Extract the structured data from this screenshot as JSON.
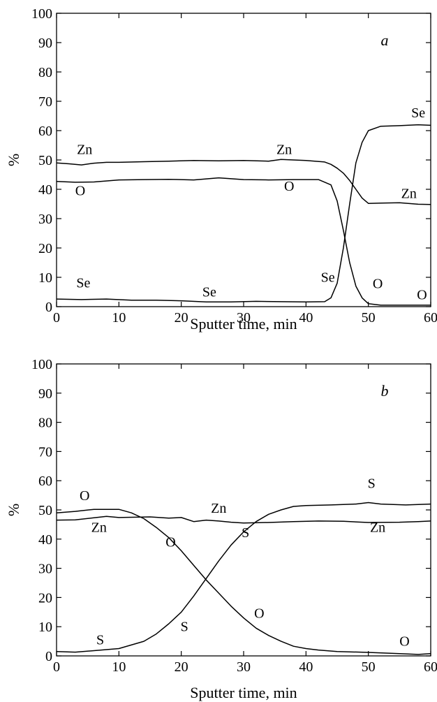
{
  "chart_data": [
    {
      "type": "line",
      "panel_label": "a",
      "xlabel": "Sputter time, min",
      "ylabel": "%",
      "xlim": [
        0,
        60
      ],
      "ylim": [
        0,
        100
      ],
      "xticks": [
        "0",
        "10",
        "20",
        "30",
        "40",
        "50",
        "60"
      ],
      "yticks": [
        "0",
        "10",
        "20",
        "30",
        "40",
        "50",
        "60",
        "70",
        "80",
        "90",
        "100"
      ],
      "grid": false,
      "series": [
        {
          "name": "Zn",
          "x": [
            0,
            2,
            4,
            6,
            8,
            10,
            14,
            18,
            22,
            26,
            30,
            34,
            36,
            40,
            43,
            44,
            45,
            46,
            47,
            48,
            49,
            50,
            52,
            55,
            58,
            60
          ],
          "y": [
            49,
            48.7,
            48.3,
            48.9,
            49.2,
            49.2,
            49.4,
            49.6,
            49.8,
            49.7,
            49.8,
            49.6,
            50.2,
            49.8,
            49.3,
            48.5,
            47.2,
            45.5,
            43,
            40,
            37,
            35.2,
            35.3,
            35.4,
            34.9,
            34.8
          ]
        },
        {
          "name": "O",
          "x": [
            0,
            3,
            6,
            10,
            14,
            18,
            22,
            26,
            30,
            34,
            38,
            42,
            44,
            45,
            46,
            47,
            48,
            49,
            50,
            52,
            55,
            60
          ],
          "y": [
            42.7,
            42.4,
            42.5,
            43.2,
            43.3,
            43.4,
            43.2,
            43.9,
            43.3,
            43.2,
            43.3,
            43.3,
            41.5,
            36,
            26,
            15,
            7,
            3,
            1,
            0.5,
            0.5,
            0.5
          ]
        },
        {
          "name": "Se",
          "x": [
            0,
            4,
            8,
            12,
            16,
            20,
            24,
            28,
            32,
            36,
            40,
            43,
            44,
            45,
            46,
            47,
            48,
            49,
            50,
            52,
            55,
            58,
            60
          ],
          "y": [
            2.6,
            2.4,
            2.6,
            2.2,
            2.2,
            2,
            1.6,
            1.6,
            1.8,
            1.7,
            1.6,
            1.7,
            3,
            8,
            20,
            35,
            49,
            56,
            60,
            61.5,
            61.7,
            62,
            61.8
          ]
        }
      ],
      "annotations": [
        {
          "text": "Zn",
          "x": 4.5,
          "y": 52
        },
        {
          "text": "Zn",
          "x": 36.5,
          "y": 52
        },
        {
          "text": "Zn",
          "x": 56.5,
          "y": 37
        },
        {
          "text": "O",
          "x": 3.8,
          "y": 38
        },
        {
          "text": "O",
          "x": 37.3,
          "y": 39.5
        },
        {
          "text": "O",
          "x": 51.5,
          "y": 6.3
        },
        {
          "text": "O",
          "x": 58.6,
          "y": 2.5
        },
        {
          "text": "Se",
          "x": 4.3,
          "y": 6.6
        },
        {
          "text": "Se",
          "x": 24.5,
          "y": 3.5
        },
        {
          "text": "Se",
          "x": 43.5,
          "y": 8.5
        },
        {
          "text": "Se",
          "x": 58,
          "y": 64.5
        }
      ]
    },
    {
      "type": "line",
      "panel_label": "b",
      "xlabel": "Sputter time, min",
      "ylabel": "%",
      "xlim": [
        0,
        60
      ],
      "ylim": [
        0,
        100
      ],
      "xticks": [
        "0",
        "10",
        "20",
        "30",
        "40",
        "50",
        "60"
      ],
      "yticks": [
        "0",
        "10",
        "20",
        "30",
        "40",
        "50",
        "60",
        "70",
        "80",
        "90",
        "100"
      ],
      "grid": false,
      "series": [
        {
          "name": "O",
          "x": [
            0,
            3,
            6,
            10,
            12,
            14,
            16,
            18,
            20,
            22,
            24,
            26,
            28,
            30,
            32,
            34,
            36,
            38,
            40,
            42,
            45,
            50,
            55,
            58,
            60
          ],
          "y": [
            49,
            49.5,
            50.2,
            50.2,
            49,
            47,
            44,
            40.5,
            36,
            31,
            26,
            21.5,
            17,
            13,
            9.5,
            7,
            5,
            3.3,
            2.5,
            2,
            1.5,
            1.2,
            0.8,
            0.5,
            0.8
          ]
        },
        {
          "name": "Zn",
          "x": [
            0,
            3,
            6,
            8,
            10,
            15,
            18,
            20,
            22,
            24,
            26,
            28,
            30,
            34,
            38,
            42,
            46,
            50,
            55,
            58,
            60
          ],
          "y": [
            46.5,
            46.6,
            47.3,
            47.8,
            47.4,
            47.6,
            47.2,
            47.4,
            46,
            46.5,
            46.2,
            45.8,
            45.5,
            45.7,
            46,
            46.2,
            46.1,
            45.7,
            45.8,
            46,
            46.2
          ]
        },
        {
          "name": "S",
          "x": [
            0,
            3,
            6,
            10,
            14,
            16,
            18,
            20,
            22,
            24,
            26,
            28,
            30,
            32,
            34,
            36,
            38,
            40,
            44,
            48,
            50,
            52,
            56,
            60
          ],
          "y": [
            1.5,
            1.3,
            1.8,
            2.5,
            5,
            7.5,
            11,
            15,
            20.5,
            26.5,
            32.5,
            38,
            42.5,
            46,
            48.5,
            50,
            51.2,
            51.5,
            51.7,
            52,
            52.5,
            52,
            51.7,
            52
          ]
        }
      ],
      "annotations": [
        {
          "text": "O",
          "x": 4.5,
          "y": 53.3
        },
        {
          "text": "O",
          "x": 18.3,
          "y": 37.5
        },
        {
          "text": "O",
          "x": 32.5,
          "y": 13
        },
        {
          "text": "O",
          "x": 55.8,
          "y": 3.5
        },
        {
          "text": "Zn",
          "x": 26,
          "y": 49
        },
        {
          "text": "Zn",
          "x": 6.8,
          "y": 42.5
        },
        {
          "text": "Zn",
          "x": 51.5,
          "y": 42.5
        },
        {
          "text": "S",
          "x": 7,
          "y": 4
        },
        {
          "text": "S",
          "x": 20.5,
          "y": 8.5
        },
        {
          "text": "S",
          "x": 30.3,
          "y": 40.7
        },
        {
          "text": "S",
          "x": 50.5,
          "y": 57.5
        }
      ]
    }
  ]
}
